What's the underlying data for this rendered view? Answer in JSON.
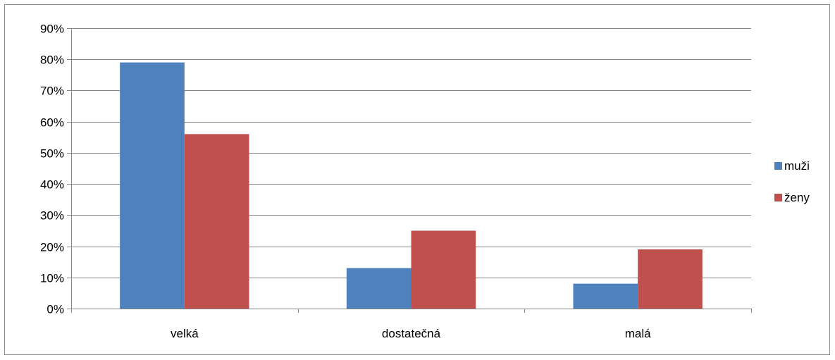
{
  "chart_data": {
    "type": "bar",
    "categories": [
      "velká",
      "dostatečná",
      "malá"
    ],
    "series": [
      {
        "name": "muži",
        "values": [
          79,
          13,
          8
        ],
        "color": "#4F81BD"
      },
      {
        "name": "ženy",
        "values": [
          56,
          25,
          19
        ],
        "color": "#C0504D"
      }
    ],
    "ylim": [
      0,
      90
    ],
    "yticks": [
      0,
      10,
      20,
      30,
      40,
      50,
      60,
      70,
      80,
      90
    ],
    "ytick_labels": [
      "0%",
      "10%",
      "20%",
      "30%",
      "40%",
      "50%",
      "60%",
      "70%",
      "80%",
      "90%"
    ],
    "grid": true,
    "legend_position": "right",
    "title": "",
    "xlabel": "",
    "ylabel": ""
  }
}
